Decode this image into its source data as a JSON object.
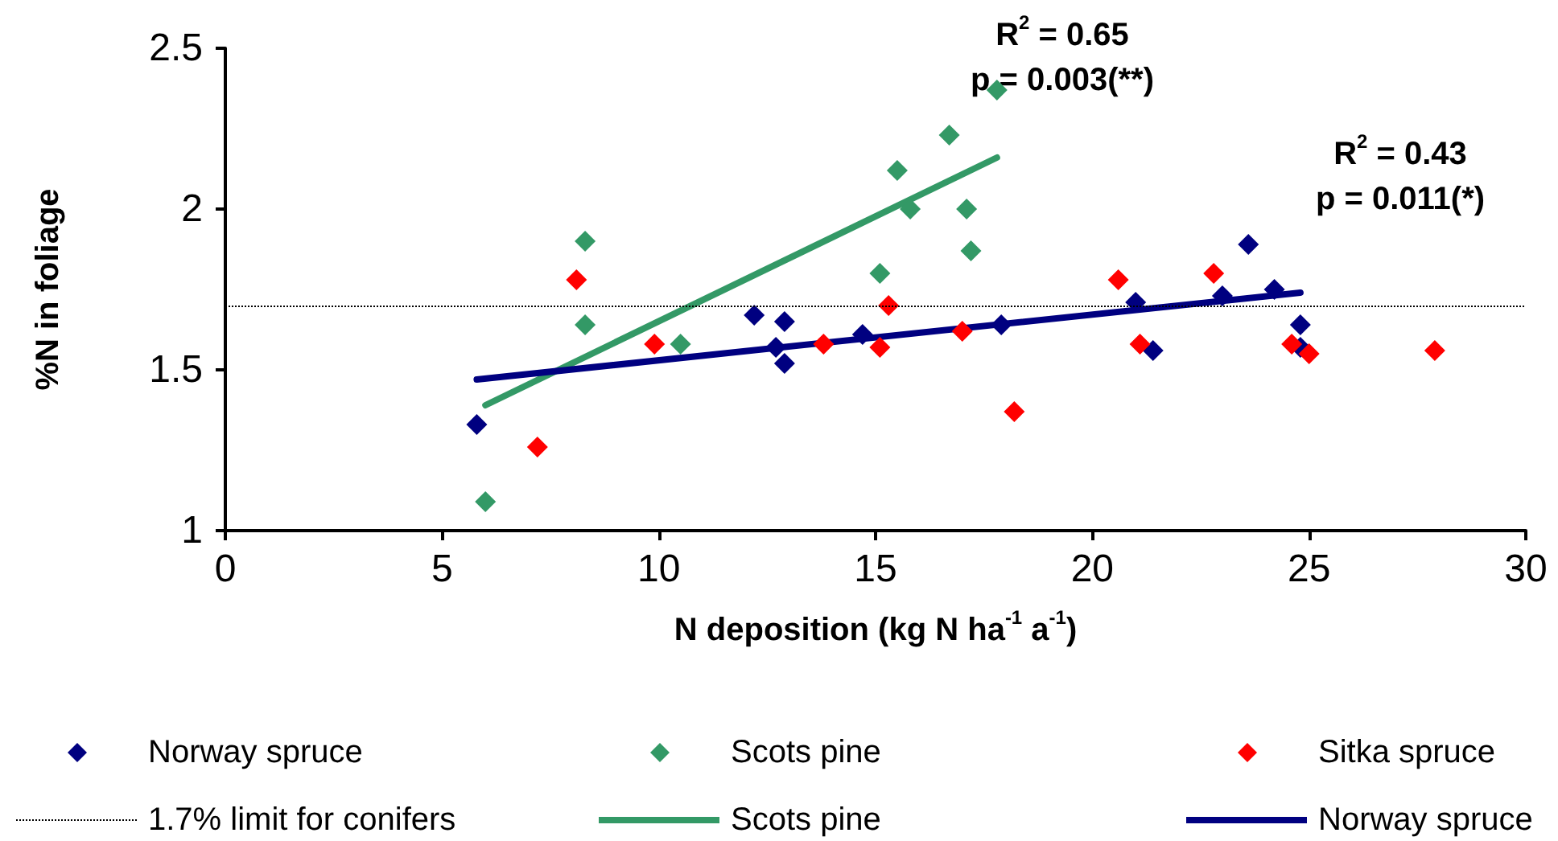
{
  "chart_data": {
    "type": "scatter",
    "xlabel": "N deposition (kg N ha$^{-1}$ a$^{-1}$)",
    "ylabel": "%N in foliage",
    "xlim": [
      0,
      30
    ],
    "xticks": [
      0,
      5,
      10,
      15,
      20,
      25,
      30
    ],
    "ylim": [
      1,
      2.5
    ],
    "yticks": [
      1,
      1.5,
      2,
      2.5
    ],
    "grid": false,
    "marker": "diamond",
    "legend": "bottom",
    "series": [
      {
        "name": "Norway spruce",
        "color": "#000080",
        "x": [
          5.8,
          12.2,
          12.7,
          12.9,
          12.9,
          14.7,
          17.9,
          21.0,
          21.4,
          23.0,
          23.6,
          24.2,
          24.8,
          24.8
        ],
        "values": [
          1.33,
          1.67,
          1.57,
          1.65,
          1.52,
          1.61,
          1.64,
          1.71,
          1.56,
          1.73,
          1.89,
          1.75,
          1.64,
          1.57
        ]
      },
      {
        "name": "Scots pine",
        "color": "#339966",
        "x": [
          6.0,
          8.3,
          8.3,
          10.5,
          15.1,
          15.5,
          15.8,
          16.7,
          17.1,
          17.2,
          17.8
        ],
        "values": [
          1.09,
          1.9,
          1.64,
          1.58,
          1.8,
          2.12,
          2.0,
          2.23,
          2.0,
          1.87,
          2.37
        ]
      },
      {
        "name": "Sitka spruce",
        "color": "#ff0000",
        "x": [
          7.2,
          8.1,
          9.9,
          13.8,
          15.1,
          15.3,
          17.0,
          18.2,
          20.6,
          21.1,
          22.8,
          24.6,
          25.0,
          27.9
        ],
        "values": [
          1.26,
          1.78,
          1.58,
          1.58,
          1.57,
          1.7,
          1.62,
          1.37,
          1.78,
          1.58,
          1.8,
          1.58,
          1.55,
          1.56
        ]
      },
      {
        "name": "Scots pine",
        "type": "line",
        "marker": "none",
        "line_style": "solid",
        "color": "#339966",
        "x": [
          6.0,
          17.8
        ],
        "values": [
          1.39,
          2.16
        ]
      },
      {
        "name": "Norway spruce",
        "type": "line",
        "marker": "none",
        "line_style": "solid",
        "color": "#000080",
        "x": [
          5.8,
          24.8
        ],
        "values": [
          1.47,
          1.74
        ]
      }
    ],
    "ref_lines": [
      {
        "axis": "y",
        "value": 1.7,
        "label": "1.7% limit for conifers",
        "color": "#000000",
        "line_style": "dotted"
      }
    ],
    "annotations": [
      "R$^{2}$ = 0.65\np = 0.003(**)",
      "R$^{2}$ = 0.43\np = 0.011(*)"
    ]
  }
}
